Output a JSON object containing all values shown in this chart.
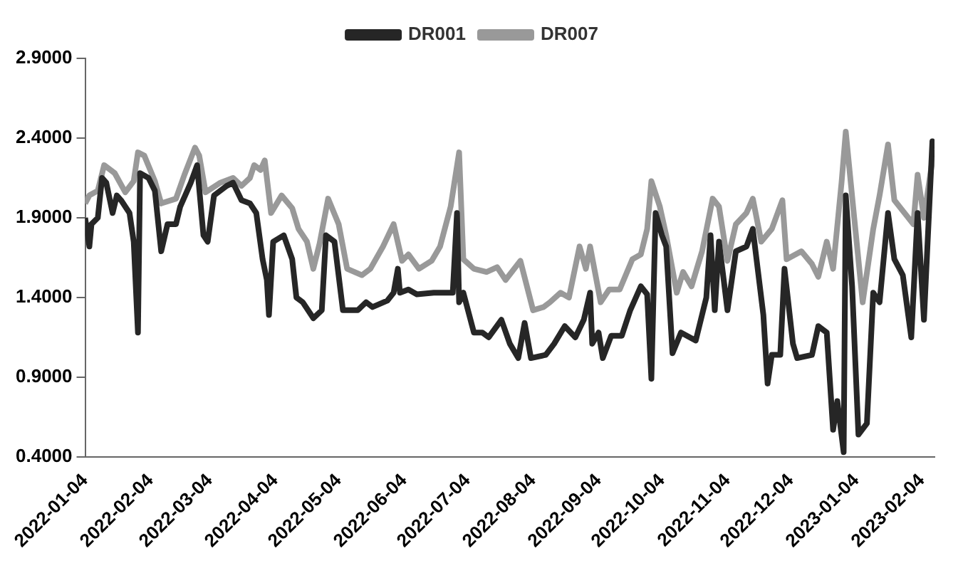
{
  "chart_data": {
    "type": "line",
    "legend": "top",
    "grid": false,
    "marker": "none",
    "line_style": "solid",
    "xlim": [
      "2022-01-04",
      "2023-02-10"
    ],
    "xticks": [
      "2022-01-04",
      "2022-02-04",
      "2022-03-04",
      "2022-04-04",
      "2022-05-04",
      "2022-06-04",
      "2022-07-04",
      "2022-08-04",
      "2022-09-04",
      "2022-10-04",
      "2022-11-04",
      "2022-12-04",
      "2023-01-04",
      "2023-02-04"
    ],
    "ylim": [
      0.4,
      2.9
    ],
    "yticks": [
      {
        "value": 0.4,
        "label": "0.4000"
      },
      {
        "value": 0.9,
        "label": "0.9000"
      },
      {
        "value": 1.4,
        "label": "1.4000"
      },
      {
        "value": 1.9,
        "label": "1.9000"
      },
      {
        "value": 2.4,
        "label": "2.4000"
      },
      {
        "value": 2.9,
        "label": "2.9000"
      }
    ],
    "series": [
      {
        "name": "DR001",
        "color": "#262626",
        "x": [
          "2022-01-04",
          "2022-01-06",
          "2022-01-07",
          "2022-01-10",
          "2022-01-12",
          "2022-01-14",
          "2022-01-17",
          "2022-01-19",
          "2022-01-21",
          "2022-01-25",
          "2022-01-27",
          "2022-01-29",
          "2022-01-30",
          "2022-02-03",
          "2022-02-06",
          "2022-02-09",
          "2022-02-12",
          "2022-02-16",
          "2022-02-18",
          "2022-02-23",
          "2022-02-26",
          "2022-03-01",
          "2022-03-03",
          "2022-03-06",
          "2022-03-12",
          "2022-03-15",
          "2022-03-19",
          "2022-03-23",
          "2022-03-26",
          "2022-03-29",
          "2022-03-31",
          "2022-04-01",
          "2022-04-03",
          "2022-04-08",
          "2022-04-12",
          "2022-04-14",
          "2022-04-17",
          "2022-04-22",
          "2022-04-26",
          "2022-04-28",
          "2022-05-02",
          "2022-05-06",
          "2022-05-13",
          "2022-05-17",
          "2022-05-20",
          "2022-05-27",
          "2022-05-30",
          "2022-06-01",
          "2022-06-02",
          "2022-06-06",
          "2022-06-10",
          "2022-06-18",
          "2022-06-27",
          "2022-06-29",
          "2022-06-30",
          "2022-07-02",
          "2022-07-07",
          "2022-07-11",
          "2022-07-14",
          "2022-07-20",
          "2022-07-24",
          "2022-07-28",
          "2022-07-31",
          "2022-08-03",
          "2022-08-10",
          "2022-08-14",
          "2022-08-19",
          "2022-08-24",
          "2022-08-28",
          "2022-08-31",
          "2022-09-01",
          "2022-09-04",
          "2022-09-06",
          "2022-09-10",
          "2022-09-15",
          "2022-09-19",
          "2022-09-24",
          "2022-09-27",
          "2022-09-29",
          "2022-10-01",
          "2022-10-04",
          "2022-10-06",
          "2022-10-09",
          "2022-10-13",
          "2022-10-20",
          "2022-10-25",
          "2022-10-27",
          "2022-10-29",
          "2022-10-31",
          "2022-11-04",
          "2022-11-08",
          "2022-11-13",
          "2022-11-16",
          "2022-11-21",
          "2022-11-23",
          "2022-11-25",
          "2022-11-29",
          "2022-12-01",
          "2022-12-05",
          "2022-12-07",
          "2022-12-14",
          "2022-12-17",
          "2022-12-21",
          "2022-12-24",
          "2022-12-26",
          "2022-12-29",
          "2022-12-30",
          "2023-01-02",
          "2023-01-05",
          "2023-01-09",
          "2023-01-12",
          "2023-01-15",
          "2023-01-19",
          "2023-01-22",
          "2023-01-26",
          "2023-01-30",
          "2023-02-02",
          "2023-02-05",
          "2023-02-09",
          "2023-02-10"
        ],
        "values": [
          1.9,
          1.72,
          1.86,
          1.9,
          2.15,
          2.12,
          1.93,
          2.04,
          2.01,
          1.93,
          1.75,
          1.18,
          2.18,
          2.15,
          2.07,
          1.69,
          1.86,
          1.86,
          1.97,
          2.12,
          2.23,
          1.79,
          1.75,
          2.04,
          2.1,
          2.12,
          2.01,
          1.99,
          1.93,
          1.64,
          1.51,
          1.29,
          1.75,
          1.79,
          1.64,
          1.4,
          1.37,
          1.27,
          1.32,
          1.79,
          1.75,
          1.32,
          1.32,
          1.37,
          1.34,
          1.38,
          1.43,
          1.58,
          1.43,
          1.45,
          1.42,
          1.43,
          1.43,
          1.93,
          1.37,
          1.43,
          1.18,
          1.18,
          1.15,
          1.26,
          1.11,
          1.02,
          1.24,
          1.02,
          1.04,
          1.11,
          1.22,
          1.15,
          1.26,
          1.43,
          1.11,
          1.18,
          1.02,
          1.16,
          1.16,
          1.32,
          1.47,
          1.42,
          0.89,
          1.93,
          1.79,
          1.72,
          1.05,
          1.18,
          1.13,
          1.4,
          1.79,
          1.32,
          1.75,
          1.32,
          1.69,
          1.72,
          1.83,
          1.29,
          0.86,
          1.04,
          1.04,
          1.58,
          1.11,
          1.02,
          1.04,
          1.22,
          1.18,
          0.57,
          0.75,
          0.43,
          2.04,
          1.47,
          0.54,
          0.61,
          1.43,
          1.37,
          1.93,
          1.64,
          1.54,
          1.15,
          1.93,
          1.26,
          2.38,
          2.33
        ]
      },
      {
        "name": "DR007",
        "color": "#999999",
        "x": [
          "2022-01-04",
          "2022-01-06",
          "2022-01-10",
          "2022-01-13",
          "2022-01-18",
          "2022-01-23",
          "2022-01-27",
          "2022-01-29",
          "2022-02-01",
          "2022-02-06",
          "2022-02-09",
          "2022-02-16",
          "2022-02-20",
          "2022-02-25",
          "2022-02-27",
          "2022-03-02",
          "2022-03-09",
          "2022-03-15",
          "2022-03-19",
          "2022-03-23",
          "2022-03-25",
          "2022-03-28",
          "2022-03-30",
          "2022-04-02",
          "2022-04-07",
          "2022-04-12",
          "2022-04-15",
          "2022-04-19",
          "2022-04-22",
          "2022-04-25",
          "2022-04-29",
          "2022-05-04",
          "2022-05-08",
          "2022-05-15",
          "2022-05-19",
          "2022-05-25",
          "2022-05-30",
          "2022-06-03",
          "2022-06-06",
          "2022-06-11",
          "2022-06-17",
          "2022-06-21",
          "2022-06-26",
          "2022-06-30",
          "2022-07-02",
          "2022-07-07",
          "2022-07-13",
          "2022-07-18",
          "2022-07-22",
          "2022-07-29",
          "2022-08-04",
          "2022-08-09",
          "2022-08-12",
          "2022-08-17",
          "2022-08-21",
          "2022-08-26",
          "2022-08-29",
          "2022-08-31",
          "2022-09-05",
          "2022-09-09",
          "2022-09-14",
          "2022-09-20",
          "2022-09-24",
          "2022-09-27",
          "2022-09-29",
          "2022-10-03",
          "2022-10-06",
          "2022-10-11",
          "2022-10-14",
          "2022-10-18",
          "2022-10-23",
          "2022-10-28",
          "2022-10-31",
          "2022-11-04",
          "2022-11-08",
          "2022-11-13",
          "2022-11-16",
          "2022-11-20",
          "2022-11-25",
          "2022-11-30",
          "2022-12-02",
          "2022-12-09",
          "2022-12-14",
          "2022-12-17",
          "2022-12-21",
          "2022-12-24",
          "2022-12-28",
          "2022-12-30",
          "2023-01-03",
          "2023-01-07",
          "2023-01-12",
          "2023-01-15",
          "2023-01-19",
          "2023-01-22",
          "2023-01-31",
          "2023-02-02",
          "2023-02-05",
          "2023-02-09",
          "2023-02-10"
        ],
        "values": [
          1.99,
          2.04,
          2.07,
          2.23,
          2.18,
          2.06,
          2.13,
          2.31,
          2.29,
          2.13,
          1.99,
          2.02,
          2.17,
          2.34,
          2.29,
          2.06,
          2.12,
          2.15,
          2.1,
          2.15,
          2.23,
          2.2,
          2.26,
          1.93,
          2.04,
          1.96,
          1.83,
          1.75,
          1.58,
          1.74,
          2.02,
          1.86,
          1.58,
          1.54,
          1.58,
          1.72,
          1.86,
          1.63,
          1.67,
          1.58,
          1.63,
          1.72,
          1.97,
          2.31,
          1.64,
          1.58,
          1.56,
          1.59,
          1.51,
          1.63,
          1.32,
          1.34,
          1.37,
          1.43,
          1.4,
          1.72,
          1.58,
          1.72,
          1.37,
          1.45,
          1.45,
          1.64,
          1.67,
          1.83,
          2.13,
          1.97,
          1.79,
          1.43,
          1.56,
          1.47,
          1.69,
          2.02,
          1.97,
          1.63,
          1.86,
          1.93,
          2.02,
          1.75,
          1.83,
          2.01,
          1.64,
          1.69,
          1.61,
          1.53,
          1.75,
          1.58,
          2.12,
          2.44,
          1.9,
          1.37,
          1.83,
          2.04,
          2.36,
          2.01,
          1.86,
          2.17,
          1.9,
          2.26,
          2.22
        ]
      }
    ]
  }
}
